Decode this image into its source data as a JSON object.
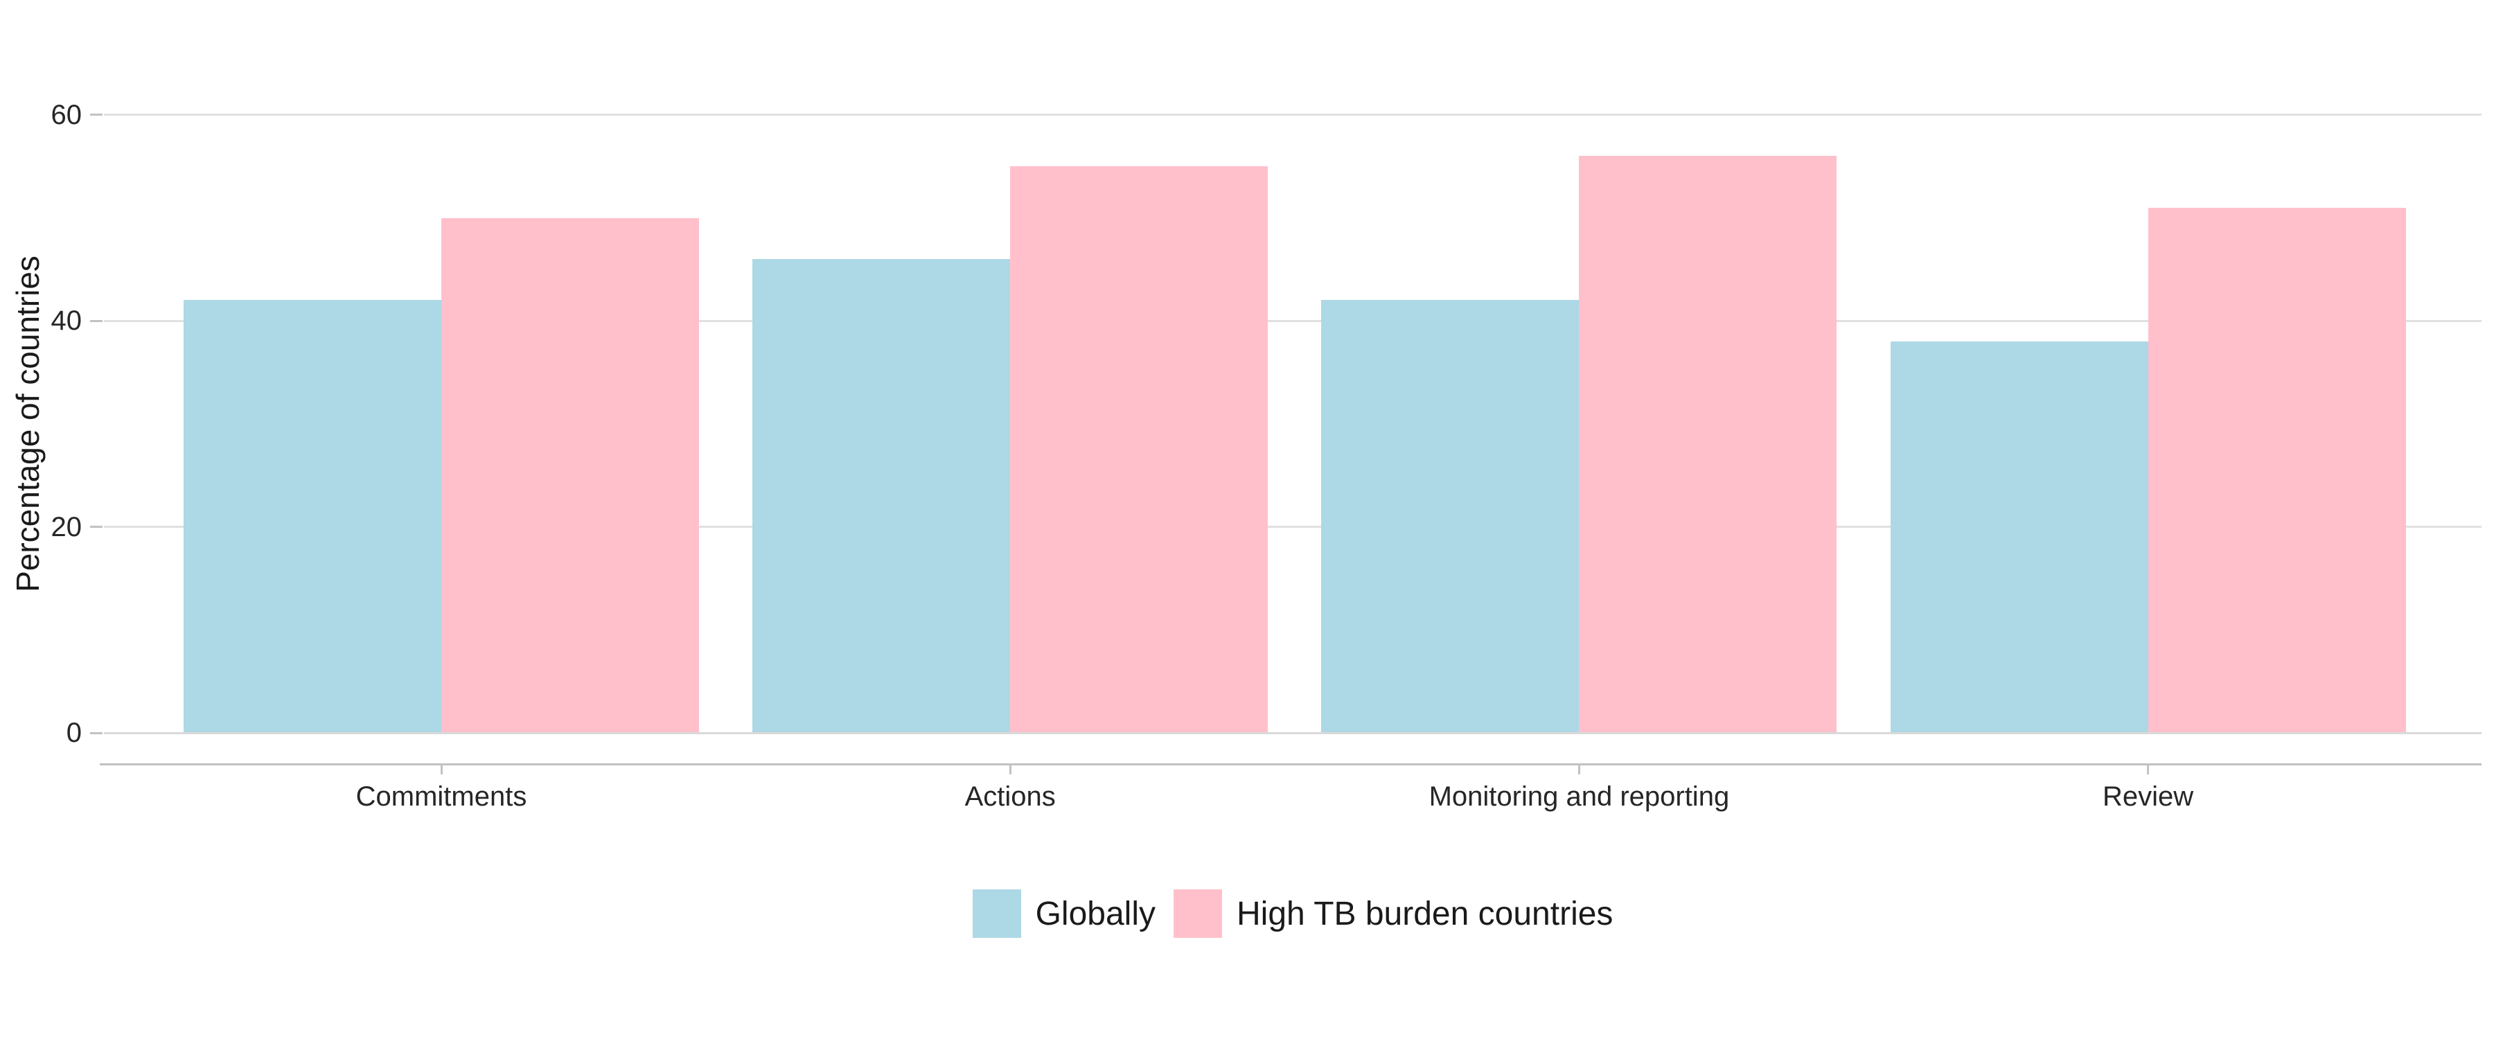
{
  "chart_data": {
    "type": "bar",
    "title": "",
    "categories": [
      "Commitments",
      "Actions",
      "Monitoring and reporting",
      "Review"
    ],
    "series": [
      {
        "name": "Globally",
        "color": "#ADD8E6",
        "values": [
          42,
          46,
          42,
          38
        ]
      },
      {
        "name": "High TB burden countries",
        "color": "#FFC0CB",
        "values": [
          50,
          55,
          56,
          51
        ]
      }
    ],
    "xlabel": "",
    "ylabel": "Percentage of countries",
    "ylim": [
      0,
      60
    ],
    "yticks": [
      0,
      20,
      40,
      60
    ],
    "grid": "horizontal",
    "legend_position": "bottom",
    "colors": {
      "gridline": "#e0e0e0",
      "axis_line": "#c2c2c2",
      "text": "#262626"
    }
  }
}
